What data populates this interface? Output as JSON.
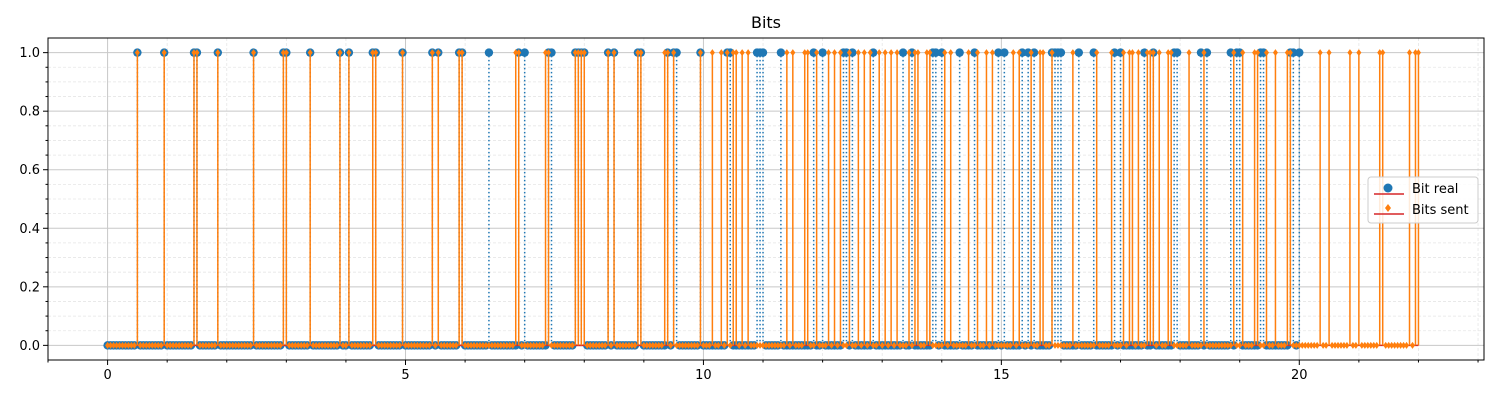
{
  "chart_data": {
    "type": "stem",
    "title": "Bits",
    "xlabel": "",
    "ylabel": "",
    "xlim": [
      -1.0,
      23.1
    ],
    "ylim": [
      -0.05,
      1.05
    ],
    "x_ticks": [
      "0",
      "5",
      "10",
      "15",
      "20"
    ],
    "x_tick_values": [
      0,
      5,
      10,
      15,
      20
    ],
    "y_ticks": [
      "0.0",
      "0.2",
      "0.4",
      "0.6",
      "0.8",
      "1.0"
    ],
    "y_tick_values": [
      0.0,
      0.2,
      0.4,
      0.6,
      0.8,
      1.0
    ],
    "grid": true,
    "minor_grid": true,
    "legend_position": "center-right",
    "series": [
      {
        "name": "Bit real",
        "color": "#1f77b4",
        "marker": "circle",
        "line_style": "dotted",
        "step": 0.05,
        "x_start": 0.0,
        "x_end": 20.0,
        "ones_x": [
          0.5,
          0.95,
          1.45,
          1.5,
          1.85,
          2.45,
          2.95,
          3.0,
          3.4,
          3.9,
          4.05,
          4.45,
          4.5,
          4.95,
          5.45,
          5.55,
          5.9,
          5.95,
          6.4,
          6.9,
          7.0,
          7.4,
          7.45,
          7.85,
          7.9,
          7.95,
          8.0,
          8.4,
          8.5,
          8.9,
          8.95,
          9.4,
          9.5,
          9.55,
          9.95,
          10.4,
          10.45,
          10.9,
          10.95,
          11.0,
          11.3,
          11.85,
          12.0,
          12.35,
          12.4,
          12.5,
          12.85,
          13.35,
          13.5,
          13.85,
          13.9,
          14.0,
          14.3,
          14.55,
          14.95,
          15.05,
          15.35,
          15.45,
          15.55,
          15.85,
          15.9,
          15.95,
          16.0,
          16.3,
          16.55,
          16.9,
          17.0,
          17.4,
          17.55,
          17.9,
          17.95,
          18.35,
          18.45,
          18.85,
          18.95,
          19.0,
          19.35,
          19.4,
          19.85,
          19.9,
          20.0
        ]
      },
      {
        "name": "Bits sent",
        "color": "#ff7f0e",
        "marker": "diamond",
        "line_style": "solid",
        "step": 0.05,
        "x_start": 0.0,
        "x_end": 22.0,
        "ones_x": [
          0.5,
          0.95,
          1.45,
          1.5,
          1.85,
          2.45,
          2.95,
          3.0,
          3.4,
          3.9,
          4.05,
          4.45,
          4.5,
          4.95,
          5.45,
          5.55,
          5.9,
          5.95,
          6.85,
          6.9,
          7.35,
          7.4,
          7.85,
          7.9,
          7.95,
          8.0,
          8.4,
          8.5,
          8.9,
          8.95,
          9.35,
          9.4,
          9.5,
          9.95,
          10.15,
          10.3,
          10.4,
          10.5,
          10.55,
          10.65,
          10.75,
          11.4,
          11.5,
          11.7,
          11.75,
          11.9,
          12.1,
          12.2,
          12.3,
          12.45,
          12.6,
          12.7,
          12.8,
          12.95,
          13.05,
          13.15,
          13.25,
          13.45,
          13.55,
          13.6,
          13.75,
          13.8,
          14.05,
          14.15,
          14.45,
          14.6,
          14.75,
          14.85,
          15.2,
          15.3,
          15.5,
          15.65,
          15.7,
          15.85,
          16.2,
          16.6,
          16.85,
          17.05,
          17.15,
          17.2,
          17.3,
          17.45,
          17.5,
          17.55,
          17.65,
          17.8,
          17.85,
          18.15,
          18.4,
          18.9,
          19.05,
          19.25,
          19.3,
          19.45,
          19.6,
          19.8,
          19.85,
          20.35,
          20.5,
          20.85,
          21.0,
          21.35,
          21.4,
          21.85,
          21.95,
          22.0
        ]
      }
    ]
  }
}
